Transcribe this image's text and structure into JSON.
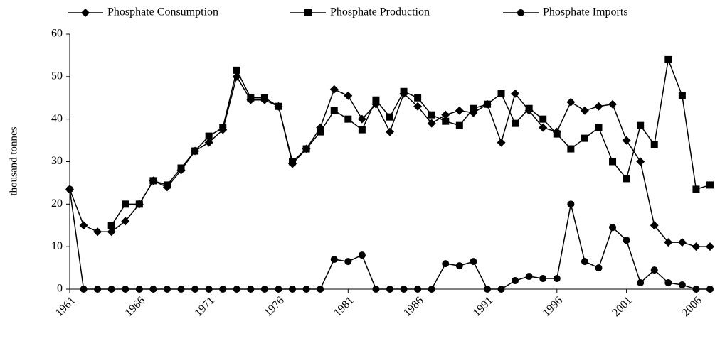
{
  "chart_data": {
    "type": "line",
    "y_label": "thousand tonnes",
    "x": [
      1961,
      1962,
      1963,
      1964,
      1965,
      1966,
      1967,
      1968,
      1969,
      1970,
      1971,
      1972,
      1973,
      1974,
      1975,
      1976,
      1977,
      1978,
      1979,
      1980,
      1981,
      1982,
      1983,
      1984,
      1985,
      1986,
      1987,
      1988,
      1989,
      1990,
      1991,
      1992,
      1993,
      1994,
      1995,
      1996,
      1997,
      1998,
      1999,
      2000,
      2001,
      2002,
      2003,
      2004,
      2005,
      2006,
      2007
    ],
    "xlim": [
      1961,
      2007
    ],
    "xticks": [
      1961,
      1966,
      1971,
      1976,
      1981,
      1986,
      1991,
      1996,
      2001,
      2006
    ],
    "ylim": [
      0,
      60
    ],
    "yticks": [
      0,
      10,
      20,
      30,
      40,
      50,
      60
    ],
    "series": [
      {
        "name": "Phosphate Consumption",
        "color": "#000000",
        "marker": "diamond",
        "values": [
          23.5,
          15,
          13.5,
          13.5,
          16,
          20,
          25.5,
          24,
          28,
          32.5,
          34.5,
          37.5,
          50,
          44.5,
          44.5,
          43,
          29.5,
          33,
          38,
          47,
          45.5,
          40,
          43.5,
          37,
          46,
          43,
          39,
          41,
          42,
          41.5,
          43.5,
          34.5,
          46,
          42,
          38,
          37,
          44,
          42,
          43,
          43.5,
          35,
          30,
          15,
          11,
          11,
          10,
          10
        ]
      },
      {
        "name": "Phosphate Production",
        "color": "#000000",
        "marker": "square",
        "values": [
          null,
          null,
          null,
          15,
          20,
          20,
          25.5,
          24.5,
          28.5,
          32.5,
          36,
          38,
          51.5,
          45,
          45,
          43,
          30,
          33,
          37,
          42,
          40,
          37.5,
          44.5,
          40.5,
          46.5,
          45,
          41,
          39.5,
          38.5,
          42.5,
          43.5,
          46,
          39,
          42.5,
          40,
          36.5,
          33,
          35.5,
          38,
          30,
          26,
          38.5,
          34,
          54,
          45.5,
          23.5,
          24.5
        ]
      },
      {
        "name": "Phosphate Imports",
        "color": "#000000",
        "marker": "circle",
        "values": [
          23.5,
          0,
          0,
          0,
          0,
          0,
          0,
          0,
          0,
          0,
          0,
          0,
          0,
          0,
          0,
          0,
          0,
          0,
          0,
          7,
          6.5,
          8,
          0,
          0,
          0,
          0,
          0,
          6,
          5.5,
          6.5,
          0,
          0,
          2,
          3,
          2.5,
          2.5,
          20,
          6.5,
          5,
          14.5,
          11.5,
          1.5,
          4.5,
          1.5,
          1,
          0,
          0
        ]
      }
    ]
  }
}
